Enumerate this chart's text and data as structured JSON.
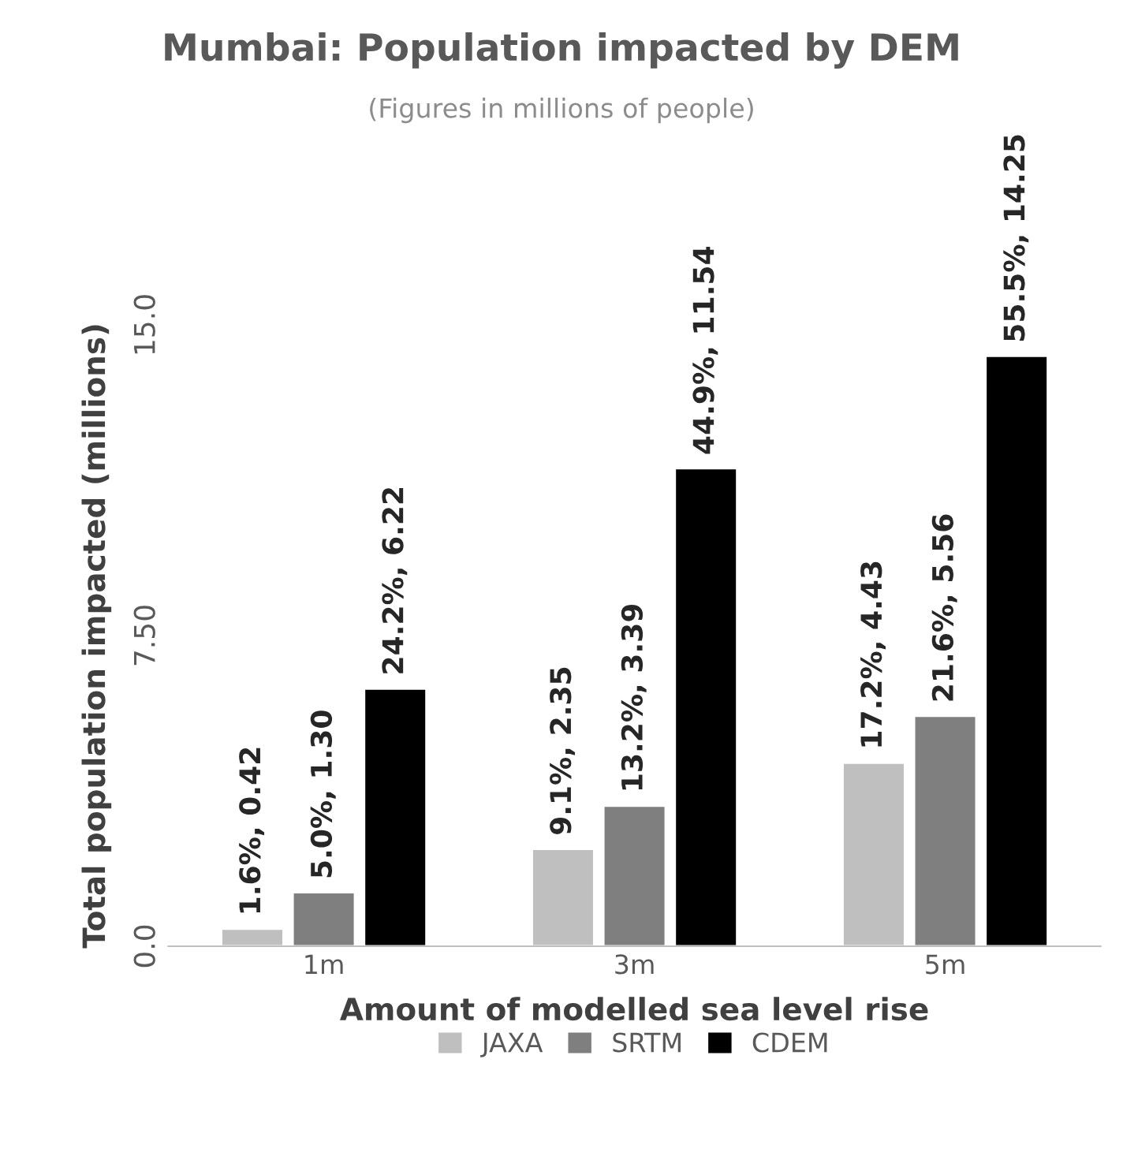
{
  "chart_data": {
    "type": "bar",
    "title": "Mumbai: Population impacted by DEM",
    "subtitle": "(Figures in millions of people)",
    "xlabel": "Amount of modelled sea level rise",
    "ylabel": "Total population impacted (millions)",
    "categories": [
      "1m",
      "3m",
      "5m"
    ],
    "series": [
      {
        "name": "JAXA",
        "color": "#bfbfbf",
        "values": [
          0.42,
          2.35,
          4.43
        ],
        "value_labels": [
          "1.6%, 0.42",
          "9.1%, 2.35",
          "17.2%, 4.43"
        ]
      },
      {
        "name": "SRTM",
        "color": "#7f7f7f",
        "values": [
          1.3,
          3.39,
          5.56
        ],
        "value_labels": [
          "5.0%, 1.30",
          "13.2%, 3.39",
          "21.6%, 5.56"
        ]
      },
      {
        "name": "CDEM",
        "color": "#000000",
        "values": [
          6.22,
          11.54,
          14.25
        ],
        "value_labels": [
          "24.2%, 6.22",
          "44.9%, 11.54",
          "55.5%, 14.25"
        ]
      }
    ],
    "ylim": [
      0,
      15
    ],
    "yticks": [
      {
        "value": 0,
        "label": "0.0"
      },
      {
        "value": 7.5,
        "label": "7.50"
      },
      {
        "value": 15,
        "label": "15.0"
      }
    ],
    "grid": false,
    "legend": "bottom"
  }
}
